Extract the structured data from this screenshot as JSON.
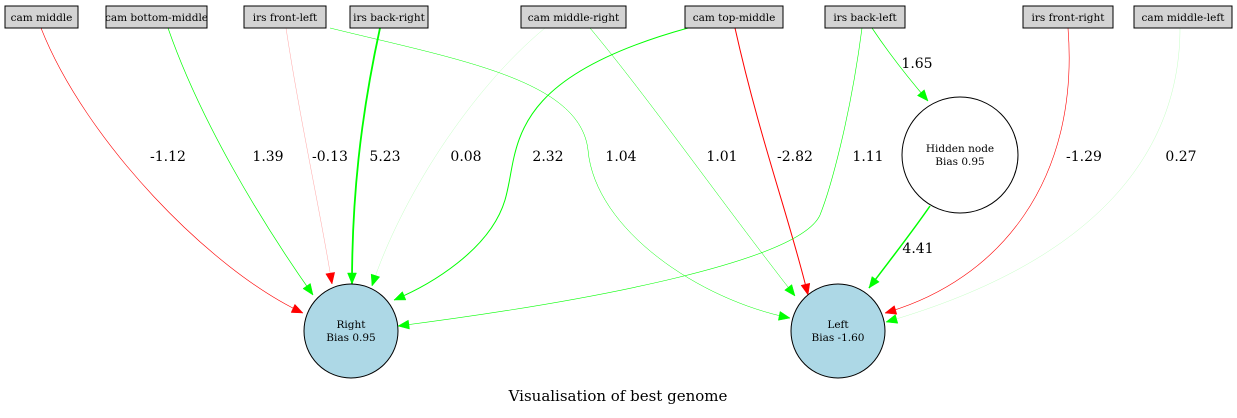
{
  "title": "Visualisation of best genome",
  "inputs": [
    {
      "id": "cam_middle",
      "label": "cam middle"
    },
    {
      "id": "cam_bottom_middle",
      "label": "cam bottom-middle"
    },
    {
      "id": "irs_front_left",
      "label": "irs front-left"
    },
    {
      "id": "irs_back_right",
      "label": "irs back-right"
    },
    {
      "id": "cam_middle_right",
      "label": "cam middle-right"
    },
    {
      "id": "cam_top_middle",
      "label": "cam top-middle"
    },
    {
      "id": "irs_back_left",
      "label": "irs back-left"
    },
    {
      "id": "irs_front_right",
      "label": "irs front-right"
    },
    {
      "id": "cam_middle_left",
      "label": "cam middle-left"
    }
  ],
  "hidden": [
    {
      "id": "hidden",
      "name": "Hidden node",
      "bias": "Bias 0.95",
      "fill": "#ffffff"
    }
  ],
  "outputs": [
    {
      "id": "right",
      "name": "Right",
      "bias": "Bias 0.95",
      "fill": "#add8e6"
    },
    {
      "id": "left",
      "name": "Left",
      "bias": "Bias -1.60",
      "fill": "#add8e6"
    }
  ],
  "edges": [
    {
      "from": "cam_middle",
      "to": "right",
      "weight": "-1.12",
      "color": "#ff0000"
    },
    {
      "from": "cam_bottom_middle",
      "to": "right",
      "weight": "1.39",
      "color": "#00ff00"
    },
    {
      "from": "irs_front_left",
      "to": "right",
      "weight": "-0.13",
      "color": "#ff0000"
    },
    {
      "from": "irs_back_right",
      "to": "right",
      "weight": "5.23",
      "color": "#00ff00"
    },
    {
      "from": "cam_middle_right",
      "to": "right",
      "weight": "0.08",
      "color": "#00ff00"
    },
    {
      "from": "cam_top_middle",
      "to": "right",
      "weight": "2.32",
      "color": "#00ff00"
    },
    {
      "from": "irs_front_left",
      "to": "left",
      "weight": "1.04",
      "color": "#00ff00"
    },
    {
      "from": "cam_middle_right",
      "to": "left",
      "weight": "1.01",
      "color": "#00ff00"
    },
    {
      "from": "cam_top_middle",
      "to": "left",
      "weight": "-2.82",
      "color": "#ff0000"
    },
    {
      "from": "irs_back_left",
      "to": "right",
      "weight": "1.11",
      "color": "#00ff00"
    },
    {
      "from": "irs_back_left",
      "to": "hidden",
      "weight": "1.65",
      "color": "#00ff00"
    },
    {
      "from": "hidden",
      "to": "left",
      "weight": "4.41",
      "color": "#00ff00"
    },
    {
      "from": "irs_front_right",
      "to": "left",
      "weight": "-1.29",
      "color": "#ff0000"
    },
    {
      "from": "cam_middle_left",
      "to": "left",
      "weight": "0.27",
      "color": "#00ff00"
    }
  ]
}
